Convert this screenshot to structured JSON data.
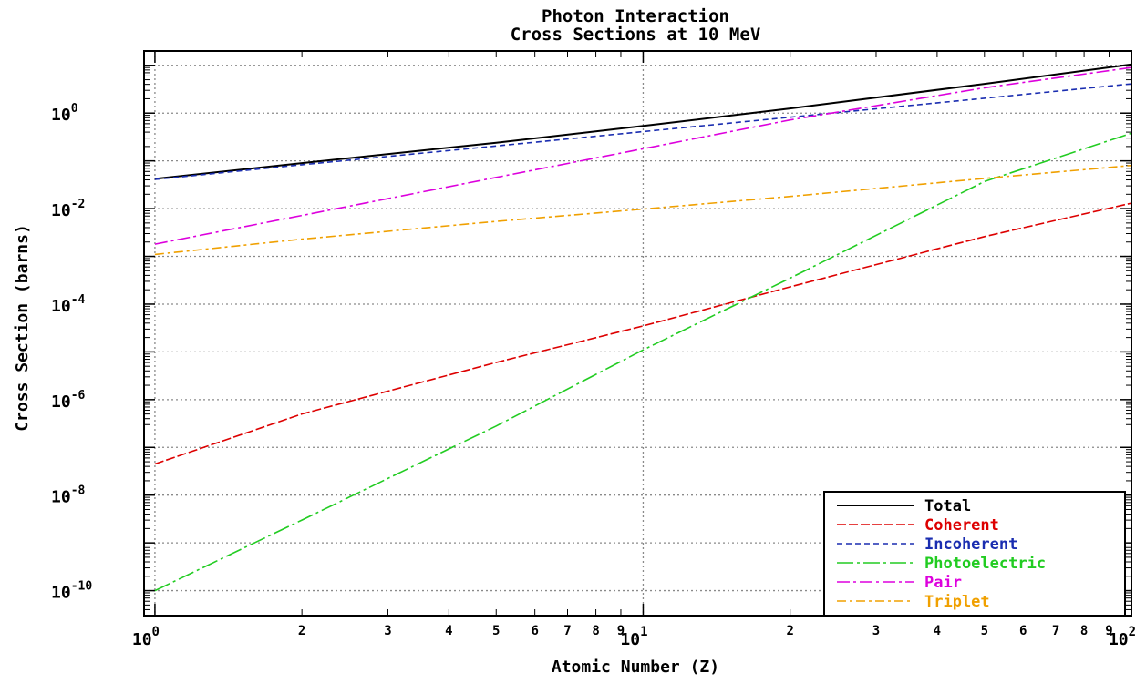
{
  "chart_data": {
    "type": "line",
    "title": "Photon Interaction",
    "subtitle": "Cross Sections at 10 MeV",
    "xlabel": "Atomic Number (Z)",
    "ylabel": "Cross Section (barns)",
    "xscale": "log",
    "yscale": "log",
    "xlim": [
      0.95,
      100
    ],
    "ylim": [
      3e-11,
      20.0
    ],
    "x_major_ticks": [
      {
        "base": "10",
        "exp": "0",
        "value": 1
      },
      {
        "base": "10",
        "exp": "1",
        "value": 10
      },
      {
        "base": "10",
        "exp": "2",
        "value": 100
      }
    ],
    "x_minor_ticks": [
      {
        "label": "2",
        "value": 2
      },
      {
        "label": "3",
        "value": 3
      },
      {
        "label": "4",
        "value": 4
      },
      {
        "label": "5",
        "value": 5
      },
      {
        "label": "6",
        "value": 6
      },
      {
        "label": "7",
        "value": 7
      },
      {
        "label": "8",
        "value": 8
      },
      {
        "label": "9",
        "value": 9
      },
      {
        "label": "2",
        "value": 20
      },
      {
        "label": "3",
        "value": 30
      },
      {
        "label": "4",
        "value": 40
      },
      {
        "label": "5",
        "value": 50
      },
      {
        "label": "6",
        "value": 60
      },
      {
        "label": "7",
        "value": 70
      },
      {
        "label": "8",
        "value": 80
      },
      {
        "label": "9",
        "value": 90
      }
    ],
    "y_major_ticks": [
      {
        "base": "10",
        "exp": "0",
        "value": 1
      },
      {
        "base": "10",
        "exp": "-2",
        "value": 0.01
      },
      {
        "base": "10",
        "exp": "-4",
        "value": 0.0001
      },
      {
        "base": "10",
        "exp": "-6",
        "value": 1e-06
      },
      {
        "base": "10",
        "exp": "-8",
        "value": 1e-08
      },
      {
        "base": "10",
        "exp": "-10",
        "value": 1e-10
      }
    ],
    "grid": true,
    "legend_position": "bottom-right",
    "series": [
      {
        "name": "Total",
        "color": "#000000",
        "dash": "",
        "x": [
          1,
          2,
          5,
          10,
          20,
          50,
          100
        ],
        "y": [
          0.042,
          0.09,
          0.24,
          0.54,
          1.25,
          4.1,
          10.5
        ]
      },
      {
        "name": "Coherent",
        "color": "#dd0000",
        "dash": "10 3",
        "x": [
          1,
          2,
          5,
          10,
          20,
          50,
          100
        ],
        "y": [
          4.5e-08,
          5e-07,
          6e-06,
          3.5e-05,
          0.00023,
          0.0026,
          0.013
        ]
      },
      {
        "name": "Incoherent",
        "color": "#1a2db0",
        "dash": "6 4",
        "x": [
          1,
          2,
          5,
          10,
          20,
          50,
          100
        ],
        "y": [
          0.041,
          0.083,
          0.205,
          0.41,
          0.82,
          2.05,
          4.1
        ]
      },
      {
        "name": "Photoelectric",
        "color": "#22cc22",
        "dash": "18 4 3 4",
        "x": [
          1,
          2,
          5,
          10,
          20,
          50,
          100
        ],
        "y": [
          1e-10,
          3e-09,
          2.8e-07,
          1.1e-05,
          0.00035,
          0.037,
          0.38
        ]
      },
      {
        "name": "Pair",
        "color": "#dd00dd",
        "dash": "14 4 3 4",
        "x": [
          1,
          2,
          5,
          10,
          20,
          50,
          100
        ],
        "y": [
          0.0018,
          0.0072,
          0.045,
          0.18,
          0.72,
          3.4,
          9.0
        ]
      },
      {
        "name": "Triplet",
        "color": "#f0a000",
        "dash": "10 4 3 4",
        "x": [
          1,
          2,
          5,
          10,
          20,
          50,
          100
        ],
        "y": [
          0.0011,
          0.0023,
          0.0054,
          0.0098,
          0.018,
          0.043,
          0.08
        ]
      }
    ]
  }
}
